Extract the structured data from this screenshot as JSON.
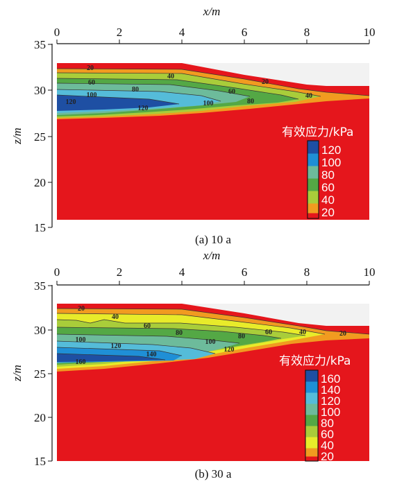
{
  "chart_data": [
    {
      "type": "contour",
      "caption": "(a) 10 a",
      "xlabel": "x/m",
      "ylabel": "z/m",
      "xlim": [
        0,
        10
      ],
      "ylim": [
        15,
        35
      ],
      "xticks": [
        "0",
        "2",
        "4",
        "6",
        "8",
        "10"
      ],
      "yticks": [
        "15",
        "20",
        "25",
        "30",
        "35"
      ],
      "legend_title": "有效应力/kPa",
      "legend_levels": [
        "120",
        "100",
        "80",
        "60",
        "40",
        "20"
      ],
      "contour_labels": [
        "20",
        "40",
        "20",
        "60",
        "80",
        "60",
        "40",
        "100",
        "120",
        "120",
        "100",
        "80"
      ]
    },
    {
      "type": "contour",
      "caption": "(b) 30 a",
      "xlabel": "x/m",
      "ylabel": "z/m",
      "xlim": [
        0,
        10
      ],
      "ylim": [
        15,
        35
      ],
      "xticks": [
        "0",
        "2",
        "4",
        "6",
        "8",
        "10"
      ],
      "yticks": [
        "15",
        "20",
        "25",
        "30",
        "35"
      ],
      "legend_title": "有效应力/kPa",
      "legend_levels": [
        "160",
        "140",
        "120",
        "100",
        "80",
        "60",
        "40",
        "20"
      ],
      "contour_labels": [
        "20",
        "40",
        "60",
        "80",
        "60",
        "40",
        "20",
        "100",
        "80",
        "100",
        "120",
        "140",
        "120",
        "160"
      ]
    }
  ],
  "colors": {
    "red": "#e5161c",
    "orange": "#f19b20",
    "yellow": "#e8eb2a",
    "lime": "#a9cd3a",
    "green": "#54a845",
    "teal": "#6dbb9b",
    "cyan": "#55bcd9",
    "blue": "#1f8fd6",
    "darkblue": "#1e4fa3",
    "surface_gray": "#f2f2f2"
  }
}
